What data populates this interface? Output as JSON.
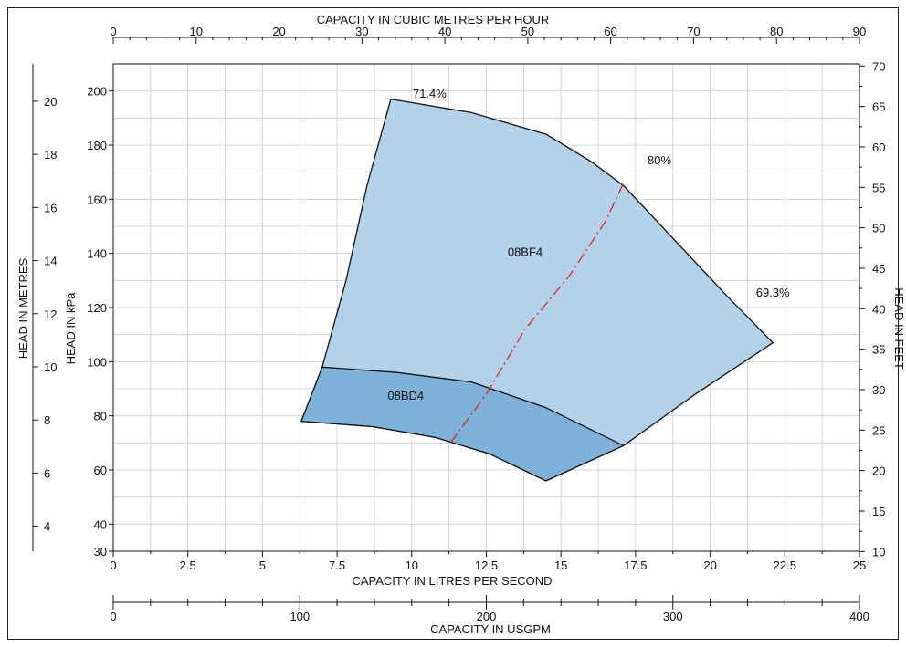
{
  "chart_data": {
    "type": "area",
    "title": "",
    "grid": true,
    "colors": {
      "upper_region": "#b3d1e8",
      "lower_region": "#7fb2d9",
      "outline": "#111111",
      "efficiency_line": "#d8232a",
      "grid": "#cccccc"
    },
    "axes": {
      "top": {
        "label": "CAPACITY IN CUBIC METRES PER HOUR",
        "ticks": [
          "0",
          "10",
          "20",
          "30",
          "40",
          "50",
          "60",
          "70",
          "80",
          "90"
        ],
        "range": [
          0,
          90
        ]
      },
      "bottom": {
        "label": "CAPACITY IN LITRES PER SECOND",
        "ticks": [
          "0",
          "2.5",
          "5",
          "7.5",
          "10",
          "12.5",
          "15",
          "17.5",
          "20",
          "22.5",
          "25"
        ],
        "range": [
          0,
          25
        ]
      },
      "usgpm": {
        "label": "CAPACITY IN USGPM",
        "ticks": [
          "0",
          "100",
          "200",
          "300",
          "400"
        ],
        "range": [
          0,
          400
        ]
      },
      "left_kpa": {
        "label": "HEAD IN kPa",
        "ticks": [
          "30",
          "40",
          "60",
          "80",
          "100",
          "120",
          "140",
          "160",
          "180",
          "200"
        ],
        "range": [
          30,
          210
        ]
      },
      "left_metres": {
        "label": "HEAD IN METRES",
        "ticks": [
          "4",
          "6",
          "8",
          "10",
          "12",
          "14",
          "16",
          "18",
          "20"
        ]
      },
      "right_feet": {
        "label": "HEAD IN FEET",
        "ticks": [
          "10",
          "15",
          "20",
          "25",
          "30",
          "35",
          "40",
          "45",
          "50",
          "55",
          "60",
          "65",
          "70"
        ],
        "range": [
          10,
          70
        ]
      }
    },
    "regions": [
      {
        "name": "08BF4",
        "points": [
          [
            9.3,
            197
          ],
          [
            12.0,
            192
          ],
          [
            14.5,
            184
          ],
          [
            16.0,
            174
          ],
          [
            17.1,
            165
          ],
          [
            18.8,
            145
          ],
          [
            20.5,
            125
          ],
          [
            22.1,
            107
          ],
          [
            19.5,
            88
          ],
          [
            17.1,
            69
          ],
          [
            14.5,
            56
          ],
          [
            12.6,
            66
          ],
          [
            10.8,
            72
          ],
          [
            8.7,
            76
          ],
          [
            6.3,
            78
          ],
          [
            7.0,
            98
          ],
          [
            7.8,
            130
          ],
          [
            8.5,
            165
          ]
        ]
      },
      {
        "name": "08BD4",
        "points": [
          [
            7.0,
            98
          ],
          [
            9.5,
            96
          ],
          [
            12.0,
            92.5
          ],
          [
            14.5,
            83
          ],
          [
            17.1,
            69
          ],
          [
            14.5,
            56
          ],
          [
            12.6,
            66
          ],
          [
            10.8,
            72
          ],
          [
            8.7,
            76
          ],
          [
            6.3,
            78
          ]
        ]
      }
    ],
    "efficiency_curve": {
      "points": [
        [
          11.3,
          70
        ],
        [
          12.5,
          88
        ],
        [
          13.8,
          112
        ],
        [
          15.3,
          132
        ],
        [
          16.5,
          152
        ],
        [
          17.1,
          166
        ]
      ]
    },
    "annotations": [
      {
        "text": "71.4%",
        "x": 10.6,
        "y": 197.5
      },
      {
        "text": "80%",
        "x": 18.3,
        "y": 173
      },
      {
        "text": "69.3%",
        "x": 22.1,
        "y": 124
      },
      {
        "text": "08BF4",
        "x": 13.8,
        "y": 139
      },
      {
        "text": "08BD4",
        "x": 9.8,
        "y": 86
      }
    ]
  }
}
